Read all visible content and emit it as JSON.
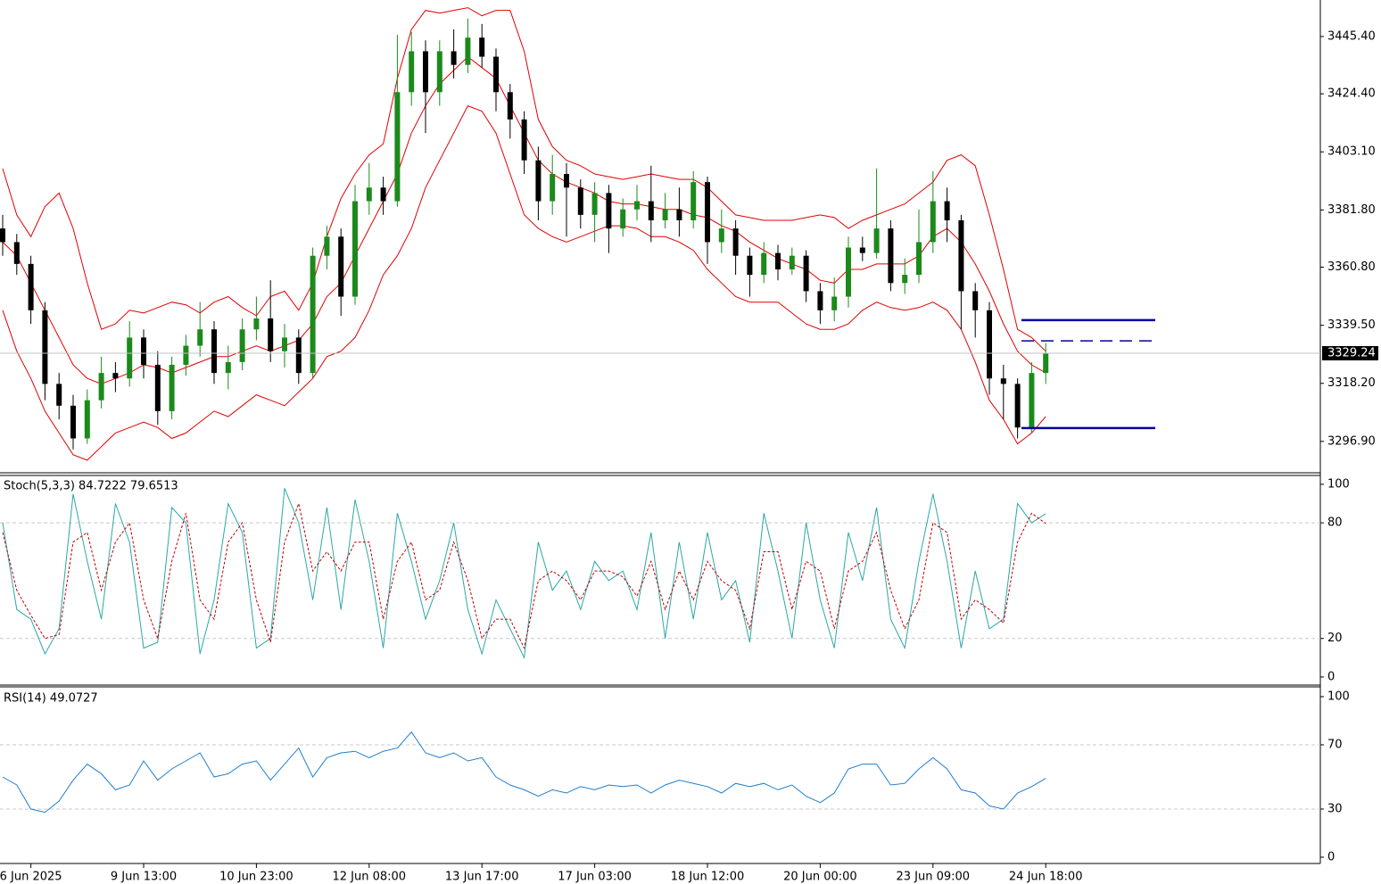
{
  "chart_data": [
    {
      "type": "candlestick",
      "categories": [
        null,
        null,
        "6 Jun 2025",
        null,
        null,
        null,
        null,
        null,
        null,
        null,
        "9 Jun 13:00",
        null,
        null,
        null,
        null,
        null,
        null,
        null,
        "10 Jun 23:00",
        null,
        null,
        null,
        null,
        null,
        null,
        null,
        "12 Jun 08:00",
        null,
        null,
        null,
        null,
        null,
        null,
        null,
        "13 Jun 17:00",
        null,
        null,
        null,
        null,
        null,
        null,
        null,
        "17 Jun 03:00",
        null,
        null,
        null,
        null,
        null,
        null,
        null,
        "18 Jun 12:00",
        null,
        null,
        null,
        null,
        null,
        null,
        null,
        "20 Jun 00:00",
        null,
        null,
        null,
        null,
        null,
        null,
        null,
        "23 Jun 09:00",
        null,
        null,
        null,
        null,
        null,
        null,
        null,
        "24 Jun 18:00"
      ],
      "open": [
        3375,
        3370,
        3362,
        3345,
        3318,
        3310,
        3298,
        3312,
        3322,
        3320,
        3335,
        3325,
        3308,
        3325,
        3332,
        3338,
        3322,
        3326,
        3338,
        3342,
        3330,
        3335,
        3322,
        3365,
        3372,
        3350,
        3385,
        3390,
        3385,
        3425,
        3440,
        3425,
        3440,
        3435,
        3445,
        3438,
        3425,
        3415,
        3400,
        3385,
        3395,
        3390,
        3380,
        3388,
        3375,
        3382,
        3385,
        3378,
        3382,
        3378,
        3392,
        3370,
        3375,
        3365,
        3358,
        3366,
        3360,
        3365,
        3352,
        3345,
        3350,
        3368,
        3366,
        3375,
        3355,
        3358,
        3370,
        3385,
        3378,
        3352,
        3345,
        3320,
        3318,
        3302,
        3322
      ],
      "high": [
        3380,
        3373,
        3365,
        3348,
        3322,
        3314,
        3316,
        3328,
        3326,
        3341,
        3338,
        3330,
        3328,
        3336,
        3348,
        3341,
        3332,
        3342,
        3350,
        3356,
        3340,
        3338,
        3368,
        3376,
        3375,
        3391,
        3399,
        3394,
        3446,
        3447,
        3444,
        3444,
        3448,
        3452,
        3450,
        3441,
        3428,
        3418,
        3405,
        3402,
        3399,
        3393,
        3392,
        3391,
        3386,
        3391,
        3398,
        3388,
        3390,
        3396,
        3394,
        3382,
        3378,
        3368,
        3370,
        3369,
        3368,
        3367,
        3355,
        3357,
        3372,
        3372,
        3397,
        3378,
        3364,
        3382,
        3396,
        3390,
        3380,
        3355,
        3348,
        3325,
        3320,
        3326,
        3333
      ],
      "low": [
        3365,
        3358,
        3340,
        3312,
        3305,
        3294,
        3296,
        3309,
        3315,
        3317,
        3320,
        3303,
        3305,
        3321,
        3328,
        3318,
        3316,
        3323,
        3334,
        3326,
        3324,
        3318,
        3320,
        3360,
        3343,
        3347,
        3380,
        3380,
        3383,
        3420,
        3410,
        3420,
        3430,
        3432,
        3434,
        3418,
        3408,
        3395,
        3378,
        3380,
        3372,
        3375,
        3370,
        3366,
        3372,
        3378,
        3370,
        3375,
        3372,
        3375,
        3362,
        3366,
        3358,
        3350,
        3355,
        3356,
        3358,
        3348,
        3340,
        3341,
        3346,
        3363,
        3364,
        3352,
        3351,
        3355,
        3366,
        3370,
        3338,
        3335,
        3314,
        3305,
        3298,
        3300,
        3318
      ],
      "close": [
        3370,
        3362,
        3345,
        3318,
        3310,
        3298,
        3312,
        3322,
        3320,
        3335,
        3325,
        3308,
        3325,
        3332,
        3338,
        3322,
        3326,
        3338,
        3342,
        3330,
        3335,
        3322,
        3365,
        3372,
        3350,
        3385,
        3390,
        3385,
        3425,
        3440,
        3425,
        3440,
        3435,
        3445,
        3438,
        3425,
        3415,
        3400,
        3385,
        3395,
        3390,
        3380,
        3388,
        3375,
        3382,
        3385,
        3378,
        3382,
        3378,
        3392,
        3370,
        3375,
        3365,
        3358,
        3366,
        3360,
        3365,
        3352,
        3345,
        3350,
        3368,
        3366,
        3375,
        3355,
        3358,
        3370,
        3385,
        3378,
        3352,
        3345,
        3320,
        3318,
        3302,
        3322,
        3329.24
      ],
      "up_color": "#1b8a1b",
      "down_color": "#000000",
      "bands": {
        "color": "#e00000",
        "upper": [
          3397,
          3380,
          3372,
          3383,
          3388,
          3375,
          3355,
          3338,
          3340,
          3345,
          3344,
          3346,
          3348,
          3347,
          3344,
          3348,
          3350,
          3346,
          3343,
          3350,
          3352,
          3345,
          3355,
          3372,
          3386,
          3395,
          3402,
          3406,
          3430,
          3448,
          3455,
          3454,
          3455,
          3456,
          3453,
          3455,
          3455,
          3440,
          3415,
          3405,
          3400,
          3398,
          3395,
          3394,
          3393,
          3394,
          3395,
          3394,
          3393,
          3393,
          3390,
          3385,
          3380,
          3379,
          3378,
          3378,
          3378,
          3379,
          3380,
          3379,
          3375,
          3378,
          3380,
          3382,
          3384,
          3388,
          3392,
          3400,
          3402,
          3398,
          3380,
          3360,
          3338,
          3335,
          3330
        ],
        "middle": [
          3370,
          3365,
          3355,
          3345,
          3335,
          3325,
          3320,
          3318,
          3320,
          3322,
          3325,
          3324,
          3322,
          3324,
          3326,
          3328,
          3328,
          3330,
          3332,
          3330,
          3332,
          3334,
          3340,
          3350,
          3355,
          3365,
          3375,
          3385,
          3395,
          3410,
          3420,
          3428,
          3433,
          3438,
          3434,
          3430,
          3420,
          3410,
          3400,
          3395,
          3392,
          3390,
          3388,
          3385,
          3384,
          3384,
          3383,
          3382,
          3382,
          3380,
          3379,
          3376,
          3374,
          3370,
          3367,
          3364,
          3362,
          3360,
          3356,
          3355,
          3360,
          3360,
          3362,
          3362,
          3362,
          3365,
          3372,
          3375,
          3370,
          3362,
          3352,
          3340,
          3330,
          3325,
          3322
        ],
        "lower": [
          3345,
          3330,
          3320,
          3308,
          3300,
          3292,
          3290,
          3295,
          3300,
          3302,
          3304,
          3302,
          3298,
          3300,
          3304,
          3308,
          3306,
          3310,
          3314,
          3312,
          3310,
          3315,
          3320,
          3328,
          3330,
          3335,
          3345,
          3358,
          3365,
          3375,
          3390,
          3400,
          3410,
          3420,
          3418,
          3410,
          3395,
          3380,
          3375,
          3372,
          3370,
          3372,
          3374,
          3376,
          3376,
          3375,
          3372,
          3372,
          3370,
          3367,
          3360,
          3355,
          3350,
          3348,
          3348,
          3348,
          3344,
          3340,
          3338,
          3338,
          3340,
          3345,
          3348,
          3346,
          3345,
          3346,
          3348,
          3345,
          3338,
          3326,
          3312,
          3305,
          3296,
          3300,
          3306
        ]
      },
      "levels": [
        {
          "value": 3341.4,
          "style": "solid"
        },
        {
          "value": 3333.8,
          "style": "dashed"
        },
        {
          "value": 3301.8,
          "style": "solid"
        }
      ],
      "level_color": "#0000a0",
      "last_price": 3329.24,
      "ylim": [
        3285.4,
        3458.8
      ],
      "yticks": [
        {
          "value": 3445.4,
          "label": "3445.40"
        },
        {
          "value": 3424.4,
          "label": "3424.40"
        },
        {
          "value": 3403.1,
          "label": "3403.10"
        },
        {
          "value": 3381.8,
          "label": "3381.80"
        },
        {
          "value": 3360.8,
          "label": "3360.80"
        },
        {
          "value": 3339.5,
          "label": "3339.50"
        },
        {
          "value": 3318.2,
          "label": "3318.20"
        },
        {
          "value": 3296.9,
          "label": "3296.90"
        }
      ]
    },
    {
      "type": "line",
      "title": "Stoch(5,3,3) 84.7222 79.6513",
      "series": [
        {
          "color": "#2aa7a7",
          "dash": false,
          "values": [
            80,
            35,
            30,
            12,
            25,
            95,
            60,
            30,
            90,
            70,
            15,
            18,
            88,
            80,
            12,
            40,
            90,
            75,
            15,
            20,
            98,
            80,
            40,
            88,
            35,
            92,
            60,
            15,
            85,
            60,
            30,
            50,
            80,
            35,
            12,
            40,
            25,
            10,
            70,
            45,
            55,
            35,
            60,
            50,
            55,
            35,
            75,
            20,
            70,
            30,
            75,
            40,
            50,
            18,
            85,
            55,
            20,
            80,
            40,
            15,
            75,
            50,
            88,
            30,
            15,
            60,
            95,
            60,
            15,
            55,
            25,
            30,
            90,
            80,
            84.7222
          ]
        },
        {
          "color": "#c00000",
          "dash": true,
          "values": [
            75,
            45,
            32,
            20,
            22,
            70,
            75,
            45,
            70,
            80,
            40,
            20,
            60,
            85,
            40,
            30,
            70,
            80,
            40,
            18,
            70,
            90,
            55,
            65,
            55,
            70,
            70,
            30,
            60,
            70,
            40,
            45,
            70,
            50,
            20,
            30,
            30,
            15,
            50,
            55,
            50,
            40,
            55,
            55,
            52,
            42,
            60,
            35,
            55,
            40,
            60,
            50,
            45,
            25,
            65,
            65,
            35,
            60,
            55,
            25,
            55,
            60,
            75,
            45,
            25,
            40,
            80,
            75,
            30,
            40,
            35,
            28,
            70,
            85,
            79.6513
          ]
        }
      ],
      "levels": [
        80,
        20
      ],
      "ylim": [
        -4.2,
        104.6
      ],
      "yticks": [
        100,
        80,
        20,
        0
      ]
    },
    {
      "type": "line",
      "title": "RSI(14) 49.0727",
      "series": [
        {
          "color": "#1e7fd0",
          "dash": false,
          "values": [
            50,
            45,
            30,
            28,
            35,
            48,
            58,
            52,
            42,
            45,
            60,
            48,
            55,
            60,
            65,
            50,
            52,
            58,
            60,
            48,
            58,
            68,
            50,
            62,
            65,
            66,
            62,
            66,
            68,
            78,
            65,
            62,
            65,
            60,
            62,
            50,
            45,
            42,
            38,
            42,
            40,
            44,
            42,
            45,
            44,
            45,
            40,
            45,
            48,
            46,
            44,
            40,
            46,
            44,
            46,
            42,
            45,
            38,
            34,
            40,
            55,
            58,
            58,
            45,
            46,
            55,
            62,
            55,
            42,
            40,
            32,
            30,
            40,
            44,
            49.0727
          ]
        }
      ],
      "levels": [
        70,
        30
      ],
      "ylim": [
        -3.9,
        106.1
      ],
      "yticks": [
        100,
        70,
        30,
        0
      ]
    }
  ]
}
